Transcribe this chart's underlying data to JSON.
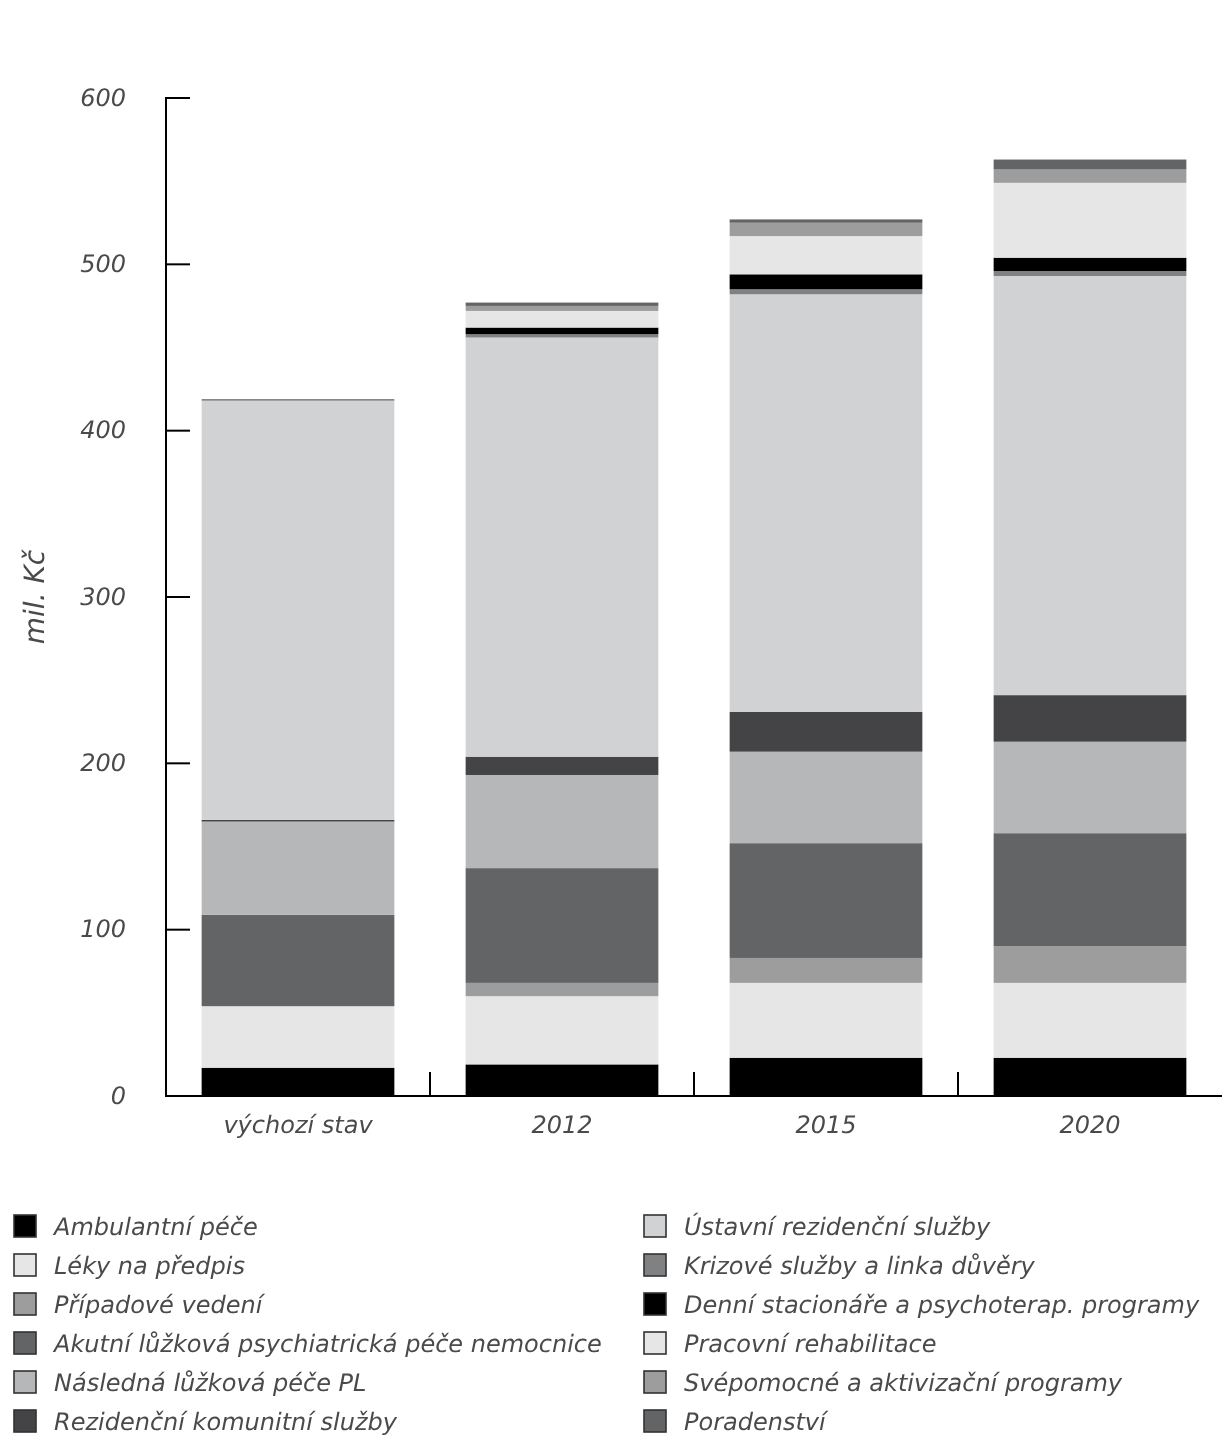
{
  "chart_data": {
    "type": "bar",
    "stacked": true,
    "ylabel": "mil. Kč",
    "categories": [
      "výchozí stav",
      "2012",
      "2015",
      "2020"
    ],
    "ylim": [
      0,
      600
    ],
    "yticks": [
      0,
      100,
      200,
      300,
      400,
      500,
      600
    ],
    "grid": false,
    "legend": "bottom",
    "series": [
      {
        "name": "Ambulantní péče",
        "color": "#000000",
        "values": [
          17,
          19,
          23,
          23
        ]
      },
      {
        "name": "Léky na předpis",
        "color": "#e6e6e6",
        "values": [
          37,
          41,
          45,
          45
        ]
      },
      {
        "name": "Případové vedení",
        "color": "#9d9d9d",
        "values": [
          0,
          8,
          15,
          22
        ]
      },
      {
        "name": "Akutní lůžková psychiatrická péče nemocnice",
        "color": "#636466",
        "values": [
          55,
          69,
          69,
          68
        ]
      },
      {
        "name": "Následná lůžková péče PL",
        "color": "#b6b7b9",
        "values": [
          56,
          56,
          55,
          55
        ]
      },
      {
        "name": "Rezidenční komunitní služby",
        "color": "#444446",
        "values": [
          1,
          11,
          24,
          28
        ]
      },
      {
        "name": "Ústavní rezidenční služby",
        "color": "#d1d2d4",
        "values": [
          252,
          252,
          251,
          252
        ]
      },
      {
        "name": "Krizové služby a linka důvěry",
        "color": "#808183",
        "values": [
          1,
          2,
          3,
          3
        ]
      },
      {
        "name": "Denní stacionáře a psychoterap. programy",
        "color": "#000000",
        "values": [
          0,
          4,
          9,
          8
        ]
      },
      {
        "name": "Pracovní rehabilitace",
        "color": "#e6e6e6",
        "values": [
          0,
          10,
          23,
          45
        ]
      },
      {
        "name": "Svépomocné a aktivizační programy",
        "color": "#9d9d9d",
        "values": [
          0,
          3,
          8,
          8
        ]
      },
      {
        "name": "Poradenství",
        "color": "#636466",
        "values": [
          0,
          2,
          2,
          6
        ]
      }
    ]
  }
}
